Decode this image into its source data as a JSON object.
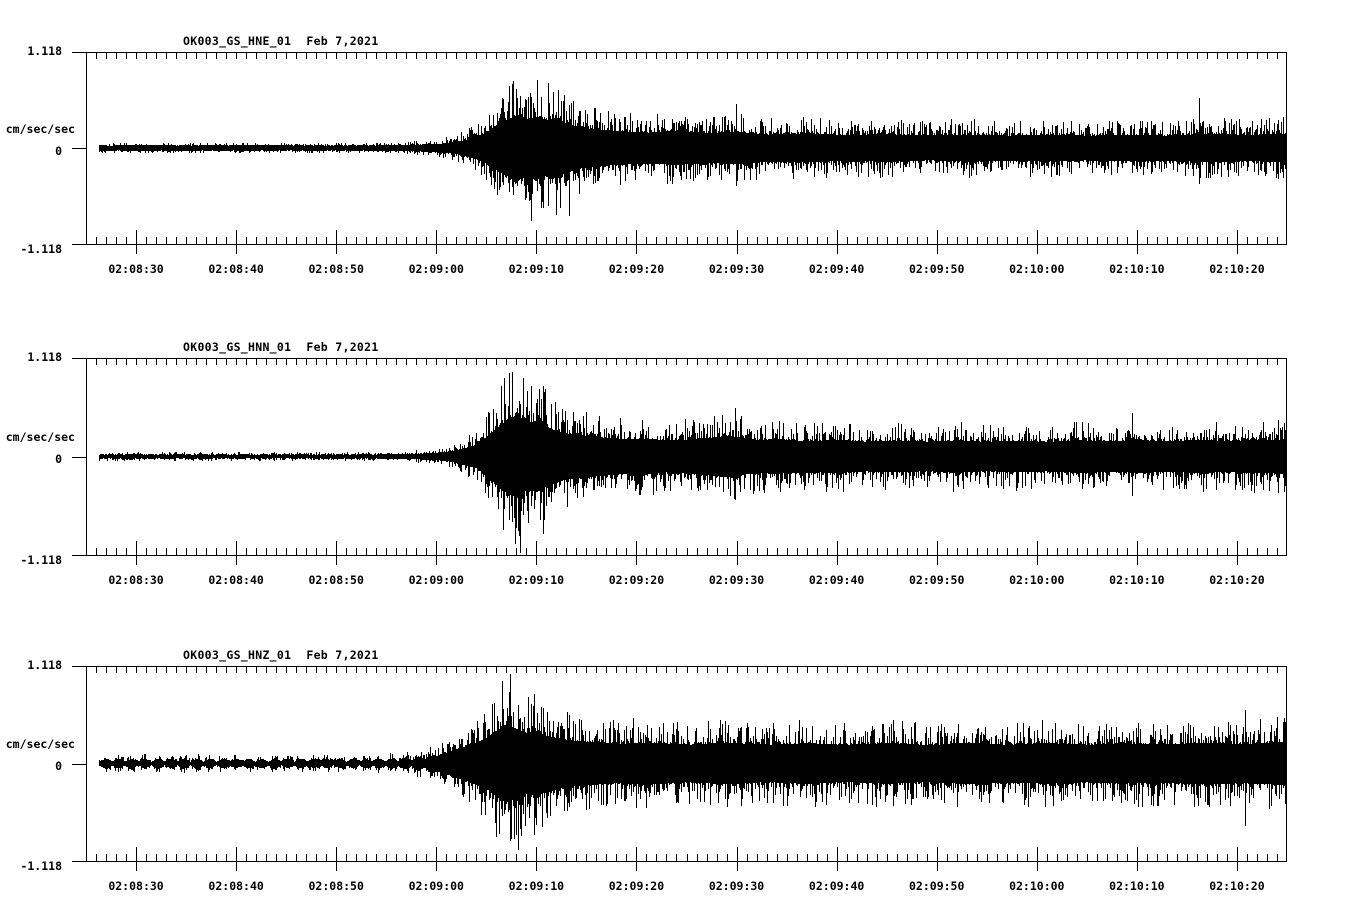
{
  "page": {
    "background": "#ffffff",
    "ink": "#000000"
  },
  "panels": [
    {
      "id": "HNE",
      "title": "OK003_GS_HNE_01",
      "date": "Feb 7,2021",
      "units_label": "cm/sec/sec",
      "y_max_label": "1.118",
      "y_zero_label": "0",
      "y_min_label": "-1.118"
    },
    {
      "id": "HNN",
      "title": "OK003_GS_HNN_01",
      "date": "Feb 7,2021",
      "units_label": "cm/sec/sec",
      "y_max_label": "1.118",
      "y_zero_label": "0",
      "y_min_label": "-1.118"
    },
    {
      "id": "HNZ",
      "title": "OK003_GS_HNZ_01",
      "date": "Feb 7,2021",
      "units_label": "cm/sec/sec",
      "y_max_label": "1.118",
      "y_zero_label": "0",
      "y_min_label": "-1.118"
    }
  ],
  "time_axis": {
    "start": "02:08:25",
    "end": "02:10:25",
    "duration_seconds": 120,
    "first_label_offset_seconds": 5,
    "major_tick_seconds": 10,
    "minor_tick_seconds": 1,
    "tick_labels": [
      "02:08:30",
      "02:08:40",
      "02:08:50",
      "02:09:00",
      "02:09:10",
      "02:09:20",
      "02:09:30",
      "02:09:40",
      "02:09:50",
      "02:10:00",
      "02:10:10",
      "02:10:20"
    ]
  },
  "chart_data": [
    {
      "type": "line",
      "title": "OK003_GS_HNE_01  Feb 7,2021",
      "ylabel": "cm/sec/sec",
      "ylim": [
        -1.118,
        1.118
      ],
      "x_start": "02:08:25",
      "x_end": "02:10:25",
      "grid": false,
      "legend": "none",
      "seed": 101,
      "trace_start_seconds": 1.3,
      "envelope": [
        [
          0,
          0.065
        ],
        [
          29,
          0.065
        ],
        [
          32,
          0.075
        ],
        [
          35,
          0.1
        ],
        [
          37,
          0.16
        ],
        [
          39,
          0.28
        ],
        [
          40,
          0.42
        ],
        [
          41,
          0.58
        ],
        [
          42,
          0.72
        ],
        [
          43,
          0.85
        ],
        [
          44,
          0.75
        ],
        [
          45,
          0.82
        ],
        [
          46,
          0.72
        ],
        [
          47,
          0.8
        ],
        [
          48,
          0.62
        ],
        [
          50,
          0.5
        ],
        [
          53,
          0.44
        ],
        [
          56,
          0.4
        ],
        [
          59,
          0.44
        ],
        [
          62,
          0.38
        ],
        [
          65,
          0.42
        ],
        [
          68,
          0.35
        ],
        [
          72,
          0.38
        ],
        [
          76,
          0.33
        ],
        [
          80,
          0.36
        ],
        [
          84,
          0.32
        ],
        [
          88,
          0.35
        ],
        [
          92,
          0.32
        ],
        [
          96,
          0.35
        ],
        [
          100,
          0.32
        ],
        [
          104,
          0.34
        ],
        [
          108,
          0.32
        ],
        [
          112,
          0.37
        ],
        [
          116,
          0.34
        ],
        [
          120,
          0.37
        ]
      ],
      "peaks": [
        [
          42.7,
          0.78,
          0.55
        ],
        [
          44.5,
          0.6,
          0.86
        ],
        [
          46.2,
          0.76,
          0.68
        ],
        [
          48.3,
          0.5,
          0.8
        ],
        [
          64.9,
          0.52,
          0.45
        ],
        [
          111.2,
          0.58,
          0.42
        ]
      ],
      "beat": null
    },
    {
      "type": "line",
      "title": "OK003_GS_HNN_01  Feb 7,2021",
      "ylabel": "cm/sec/sec",
      "ylim": [
        -1.118,
        1.118
      ],
      "x_start": "02:08:25",
      "x_end": "02:10:25",
      "grid": false,
      "legend": "none",
      "seed": 202,
      "trace_start_seconds": 1.3,
      "envelope": [
        [
          0,
          0.05
        ],
        [
          29,
          0.05
        ],
        [
          32,
          0.06
        ],
        [
          35,
          0.09
        ],
        [
          37,
          0.15
        ],
        [
          39,
          0.3
        ],
        [
          40,
          0.5
        ],
        [
          41,
          0.72
        ],
        [
          42,
          0.92
        ],
        [
          43,
          1.05
        ],
        [
          44,
          0.85
        ],
        [
          45,
          0.9
        ],
        [
          46,
          0.75
        ],
        [
          47,
          0.65
        ],
        [
          48,
          0.58
        ],
        [
          50,
          0.52
        ],
        [
          52,
          0.47
        ],
        [
          54,
          0.43
        ],
        [
          56,
          0.46
        ],
        [
          58,
          0.4
        ],
        [
          60,
          0.43
        ],
        [
          62,
          0.47
        ],
        [
          64,
          0.52
        ],
        [
          65,
          0.48
        ],
        [
          67,
          0.42
        ],
        [
          69,
          0.44
        ],
        [
          72,
          0.39
        ],
        [
          75,
          0.42
        ],
        [
          78,
          0.37
        ],
        [
          81,
          0.4
        ],
        [
          84,
          0.37
        ],
        [
          87,
          0.41
        ],
        [
          90,
          0.37
        ],
        [
          93,
          0.4
        ],
        [
          96,
          0.37
        ],
        [
          99,
          0.41
        ],
        [
          102,
          0.38
        ],
        [
          105,
          0.41
        ],
        [
          108,
          0.38
        ],
        [
          111,
          0.42
        ],
        [
          114,
          0.39
        ],
        [
          117,
          0.42
        ],
        [
          120,
          0.43
        ]
      ],
      "peaks": [
        [
          41.8,
          0.9,
          0.6
        ],
        [
          42.6,
          0.95,
          0.75
        ],
        [
          43.4,
          0.6,
          1.1
        ],
        [
          45.7,
          0.8,
          0.88
        ],
        [
          64.8,
          0.55,
          0.5
        ],
        [
          104.5,
          0.5,
          0.45
        ]
      ],
      "beat": null
    },
    {
      "type": "line",
      "title": "OK003_GS_HNZ_01  Feb 7,2021",
      "ylabel": "cm/sec/sec",
      "ylim": [
        -1.118,
        1.118
      ],
      "x_start": "02:08:25",
      "x_end": "02:10:25",
      "grid": false,
      "legend": "none",
      "seed": 303,
      "trace_start_seconds": 1.3,
      "envelope": [
        [
          0,
          0.11
        ],
        [
          28,
          0.11
        ],
        [
          31,
          0.13
        ],
        [
          34,
          0.18
        ],
        [
          36,
          0.28
        ],
        [
          38,
          0.45
        ],
        [
          40,
          0.65
        ],
        [
          41,
          0.85
        ],
        [
          42,
          1.0
        ],
        [
          43,
          0.88
        ],
        [
          44,
          0.78
        ],
        [
          45,
          0.82
        ],
        [
          46,
          0.7
        ],
        [
          48,
          0.6
        ],
        [
          50,
          0.56
        ],
        [
          53,
          0.5
        ],
        [
          56,
          0.54
        ],
        [
          60,
          0.48
        ],
        [
          64,
          0.53
        ],
        [
          68,
          0.47
        ],
        [
          72,
          0.52
        ],
        [
          76,
          0.47
        ],
        [
          80,
          0.52
        ],
        [
          84,
          0.47
        ],
        [
          88,
          0.52
        ],
        [
          92,
          0.48
        ],
        [
          96,
          0.52
        ],
        [
          100,
          0.48
        ],
        [
          104,
          0.51
        ],
        [
          108,
          0.49
        ],
        [
          112,
          0.53
        ],
        [
          116,
          0.5
        ],
        [
          120,
          0.55
        ]
      ],
      "peaks": [
        [
          41.6,
          0.95,
          0.6
        ],
        [
          42.4,
          1.03,
          0.7
        ],
        [
          43.2,
          0.68,
          1.0
        ],
        [
          44.8,
          0.8,
          0.82
        ],
        [
          115.8,
          0.62,
          0.72
        ]
      ],
      "beat": {
        "period_s": 1.3,
        "depth": 0.6,
        "t_end": 33
      }
    }
  ]
}
